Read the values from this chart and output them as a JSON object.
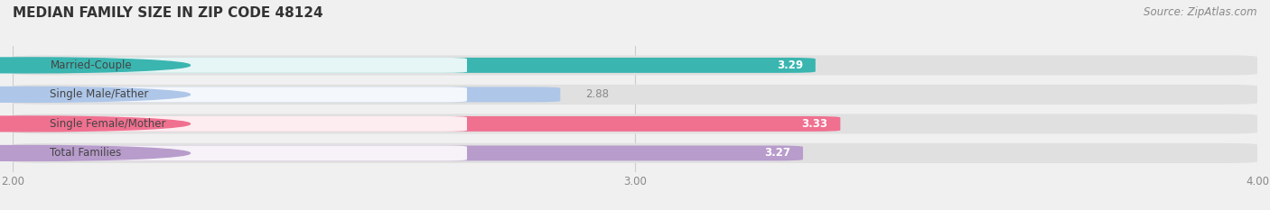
{
  "title": "MEDIAN FAMILY SIZE IN ZIP CODE 48124",
  "source": "Source: ZipAtlas.com",
  "categories": [
    "Married-Couple",
    "Single Male/Father",
    "Single Female/Mother",
    "Total Families"
  ],
  "values": [
    3.29,
    2.88,
    3.33,
    3.27
  ],
  "bar_colors": [
    "#3ab5b0",
    "#aec6e8",
    "#f07090",
    "#b89ccc"
  ],
  "track_color": "#e8e8e8",
  "xlim": [
    2.0,
    4.0
  ],
  "xticks": [
    2.0,
    3.0,
    4.0
  ],
  "xtick_labels": [
    "2.00",
    "3.00",
    "4.00"
  ],
  "label_color": "#444444",
  "title_fontsize": 11,
  "label_fontsize": 8.5,
  "value_fontsize": 8.5,
  "source_fontsize": 8.5,
  "background_color": "#f0f0f0"
}
